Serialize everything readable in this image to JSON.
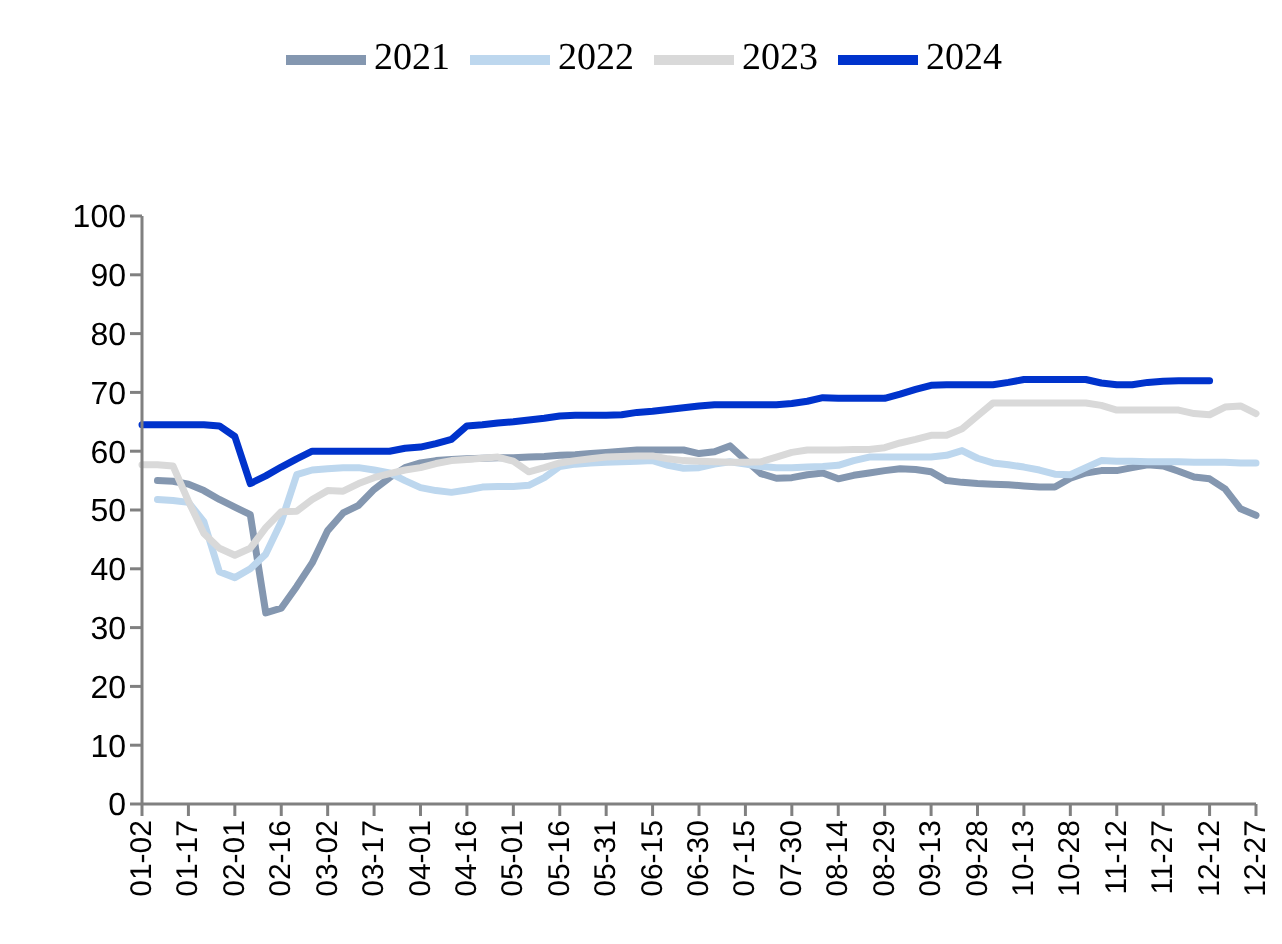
{
  "chart_data": {
    "type": "line",
    "categories": [
      "01-02",
      null,
      null,
      "01-17",
      null,
      null,
      "02-01",
      null,
      null,
      "02-16",
      null,
      null,
      "03-02",
      null,
      null,
      "03-17",
      null,
      null,
      "04-01",
      null,
      null,
      "04-16",
      null,
      null,
      "05-01",
      null,
      null,
      "05-16",
      null,
      null,
      "05-31",
      null,
      null,
      "06-15",
      null,
      null,
      "06-30",
      null,
      null,
      "07-15",
      null,
      null,
      "07-30",
      null,
      null,
      "08-14",
      null,
      null,
      "08-29",
      null,
      null,
      "09-13",
      null,
      null,
      "09-28",
      null,
      null,
      "10-13",
      null,
      null,
      "10-28",
      null,
      null,
      "11-12",
      null,
      null,
      "11-27",
      null,
      null,
      "12-12",
      null,
      null,
      "12-27"
    ],
    "series": [
      {
        "name": "2021",
        "color": "#8497b0",
        "values": [
          null,
          55,
          54.9,
          54.4,
          53.3,
          51.8,
          50.5,
          49.2,
          32.5,
          33.3,
          37,
          41,
          46.5,
          49.5,
          50.8,
          53.5,
          55.5,
          57.2,
          58,
          58.4,
          58.6,
          58.7,
          58.8,
          58.9,
          58.9,
          59,
          59.1,
          59.3,
          59.4,
          59.6,
          59.8,
          60,
          60.2,
          60.2,
          60.2,
          60.2,
          59.6,
          59.9,
          60.9,
          58.5,
          56.2,
          55.4,
          55.5,
          56,
          56.3,
          55.3,
          55.9,
          56.3,
          56.7,
          57,
          56.9,
          56.5,
          55,
          54.7,
          54.5,
          54.4,
          54.3,
          54.1,
          53.9,
          53.9,
          55.4,
          56.3,
          56.7,
          56.7,
          57.2,
          57.7,
          57.5,
          56.6,
          55.6,
          55.3,
          53.6,
          50.2,
          49.1
        ]
      },
      {
        "name": "2022",
        "color": "#bdd7ee",
        "values": [
          null,
          51.8,
          51.6,
          51.3,
          48,
          39.5,
          38.5,
          40,
          42.5,
          48,
          56,
          56.8,
          57,
          57.2,
          57.2,
          56.8,
          56.3,
          55,
          53.8,
          53.3,
          53,
          53.4,
          53.9,
          54,
          54,
          54.2,
          55.5,
          57.4,
          57.8,
          58,
          58.1,
          58.2,
          58.3,
          58.4,
          57.6,
          57.1,
          57.2,
          57.8,
          58.2,
          57.8,
          57.4,
          57.2,
          57.2,
          57.3,
          57.4,
          57.6,
          58.4,
          59,
          59,
          59,
          59,
          59,
          59.3,
          60.1,
          58.8,
          58,
          57.7,
          57.3,
          56.8,
          56.1,
          56,
          57.2,
          58.4,
          58.3,
          58.3,
          58.2,
          58.2,
          58.2,
          58.1,
          58.1,
          58.1,
          58,
          58
        ]
      },
      {
        "name": "2023",
        "color": "#d9d9d9",
        "values": [
          57.7,
          57.7,
          57.5,
          51.5,
          46,
          43.5,
          42.3,
          43.5,
          47,
          49.7,
          49.8,
          51.8,
          53.3,
          53.2,
          54.5,
          55.5,
          56.2,
          56.8,
          57.2,
          57.9,
          58.4,
          58.6,
          58.8,
          59,
          58.3,
          56.5,
          57.2,
          58,
          58.4,
          58.7,
          59,
          59.1,
          59.2,
          59.2,
          58.7,
          58.4,
          58.3,
          58.2,
          58.1,
          58.1,
          58.2,
          59,
          59.8,
          60.2,
          60.2,
          60.2,
          60.3,
          60.3,
          60.6,
          61.4,
          62,
          62.7,
          62.7,
          63.8,
          66,
          68.2,
          68.2,
          68.2,
          68.2,
          68.2,
          68.2,
          68.2,
          67.8,
          67,
          67,
          67,
          67,
          67,
          66.4,
          66.2,
          67.5,
          67.7,
          66.4
        ]
      },
      {
        "name": "2024",
        "color": "#0033cc",
        "values": [
          64.5,
          64.5,
          64.5,
          64.5,
          64.5,
          64.3,
          62.5,
          54.5,
          55.8,
          57.3,
          58.7,
          60,
          60,
          60,
          60,
          60,
          60,
          60.5,
          60.7,
          61.3,
          62,
          64.3,
          64.5,
          64.8,
          65,
          65.3,
          65.6,
          66,
          66.1,
          66.1,
          66.1,
          66.2,
          66.6,
          66.8,
          67.1,
          67.4,
          67.7,
          67.9,
          67.9,
          67.9,
          67.9,
          67.9,
          68.1,
          68.5,
          69.1,
          69,
          69,
          69,
          69,
          69.7,
          70.5,
          71.2,
          71.3,
          71.3,
          71.3,
          71.3,
          71.7,
          72.2,
          72.2,
          72.2,
          72.2,
          72.2,
          71.6,
          71.3,
          71.3,
          71.7,
          71.9,
          72,
          72,
          72,
          null,
          null,
          null
        ]
      }
    ],
    "ylim": [
      0,
      100
    ],
    "yticks": [
      0,
      10,
      20,
      30,
      40,
      50,
      60,
      70,
      80,
      90,
      100
    ],
    "legend": "top"
  }
}
